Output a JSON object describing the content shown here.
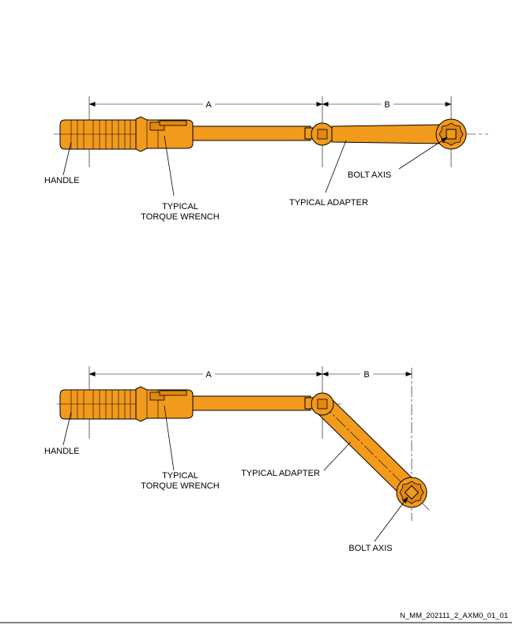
{
  "title": "",
  "reference_id": "N_MM_202111_2_AXM0_01_01",
  "views": [
    {
      "dim_a": "A",
      "dim_b": "B",
      "handle_label": "HANDLE",
      "wrench_label_line1": "TYPICAL",
      "wrench_label_line2": "TORQUE WRENCH",
      "adapter_label": "TYPICAL ADAPTER",
      "bolt_label": "BOLT AXIS"
    },
    {
      "dim_a": "A",
      "dim_b": "B",
      "handle_label": "HANDLE",
      "wrench_label_line1": "TYPICAL",
      "wrench_label_line2": "TORQUE WRENCH",
      "adapter_label": "TYPICAL ADAPTER",
      "bolt_label": "BOLT AXIS"
    }
  ],
  "colors": {
    "tool": "#f29a1c",
    "outline": "#000000",
    "background": "#ffffff"
  }
}
